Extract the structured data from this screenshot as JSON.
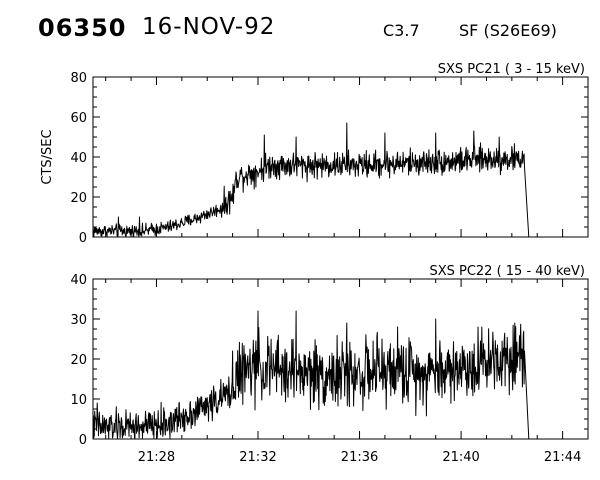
{
  "header": {
    "event_id": "06350",
    "date": "16-NOV-92",
    "flare_class": "C3.7",
    "location": "SF (S26E69)"
  },
  "colors": {
    "background": "#ffffff",
    "foreground": "#000000"
  },
  "chart_data": [
    {
      "type": "line",
      "title": "SXS PC21  (  3 - 15 keV)",
      "xlabel": "",
      "ylabel": "CTS/SEC",
      "ylim": [
        0,
        80
      ],
      "yticks": [
        "0",
        "20",
        "40",
        "60",
        "80"
      ],
      "xlim": [
        "21:25:30",
        "21:45:00"
      ],
      "xticks": [
        "21:28",
        "21:32",
        "21:36",
        "21:40",
        "21:44"
      ],
      "show_xtick_labels": false,
      "grid": false,
      "series": [
        {
          "points": [
            [
              "21:25:30",
              3
            ],
            [
              "21:26:30",
              3
            ],
            [
              "21:27:30",
              3
            ],
            [
              "21:28:30",
              5
            ],
            [
              "21:29:30",
              9
            ],
            [
              "21:30:30",
              14
            ],
            [
              "21:31:00",
              20
            ],
            [
              "21:31:10",
              30
            ],
            [
              "21:32:00",
              33
            ],
            [
              "21:32:30",
              36
            ],
            [
              "21:34:00",
              36
            ],
            [
              "21:36:00",
              36
            ],
            [
              "21:38:00",
              37
            ],
            [
              "21:40:00",
              38
            ],
            [
              "21:41:00",
              39
            ],
            [
              "21:42:30",
              39
            ],
            [
              "21:42:40",
              0
            ]
          ],
          "noise": 4,
          "spikes": [
            [
              "21:26:30",
              10
            ],
            [
              "21:27:20",
              10
            ],
            [
              "21:32:15",
              51
            ],
            [
              "21:33:30",
              50
            ],
            [
              "21:35:30",
              57
            ],
            [
              "21:37:00",
              52
            ],
            [
              "21:39:00",
              52
            ],
            [
              "21:40:30",
              53
            ],
            [
              "21:41:30",
              50
            ]
          ]
        }
      ]
    },
    {
      "type": "line",
      "title": "SXS PC22  ( 15 - 40 keV)",
      "xlabel": "",
      "ylabel": "",
      "ylim": [
        0,
        40
      ],
      "yticks": [
        "0",
        "10",
        "20",
        "30",
        "40"
      ],
      "xlim": [
        "21:25:30",
        "21:45:00"
      ],
      "xticks": [
        "21:28",
        "21:32",
        "21:36",
        "21:40",
        "21:44"
      ],
      "show_xtick_labels": true,
      "grid": false,
      "series": [
        {
          "points": [
            [
              "21:25:30",
              3
            ],
            [
              "21:26:30",
              3
            ],
            [
              "21:27:30",
              3
            ],
            [
              "21:28:30",
              4
            ],
            [
              "21:29:30",
              7
            ],
            [
              "21:30:30",
              10
            ],
            [
              "21:31:00",
              12
            ],
            [
              "21:31:10",
              16
            ],
            [
              "21:32:00",
              18
            ],
            [
              "21:33:00",
              17
            ],
            [
              "21:35:00",
              16
            ],
            [
              "21:37:00",
              17
            ],
            [
              "21:39:00",
              17
            ],
            [
              "21:40:30",
              18
            ],
            [
              "21:41:00",
              20
            ],
            [
              "21:42:00",
              21
            ],
            [
              "21:42:30",
              22
            ],
            [
              "21:42:40",
              0
            ]
          ],
          "noise": 5,
          "spikes": [
            [
              "21:31:00",
              22
            ],
            [
              "21:32:00",
              32
            ],
            [
              "21:33:30",
              32
            ],
            [
              "21:35:30",
              29
            ],
            [
              "21:37:30",
              28
            ],
            [
              "21:39:00",
              30
            ],
            [
              "21:40:40",
              28
            ],
            [
              "21:25:40",
              9
            ]
          ]
        }
      ]
    }
  ]
}
